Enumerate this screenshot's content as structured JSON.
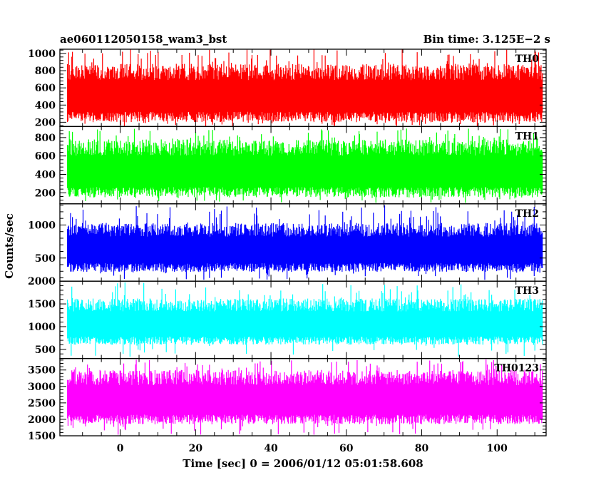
{
  "header": {
    "left": "ae060112050158_wam3_bst",
    "right": "Bin time: 3.125E−2 s"
  },
  "chart_data": {
    "type": "line",
    "xlabel": "Time [sec] 0 = 2006/01/12 05:01:58.608",
    "ylabel": "Counts/sec",
    "xlim": [
      -16,
      113
    ],
    "xrange_data": [
      -14,
      112
    ],
    "bin_time_s": 0.03125,
    "x_ticks": [
      0,
      20,
      40,
      60,
      80,
      100
    ],
    "x_tick_labels": [
      "0",
      "20",
      "40",
      "60",
      "80",
      "100"
    ],
    "grid": false,
    "panels": [
      {
        "name": "TH0",
        "color": "#ff0000",
        "ylim": [
          150,
          1050
        ],
        "yticks": [
          200,
          400,
          600,
          800,
          1000
        ],
        "ytick_labels": [
          "200",
          "400",
          "600",
          "800",
          "1000"
        ],
        "baseline": 555,
        "band_low": 200,
        "band_high": 880,
        "spike_max": 1060,
        "dip_min": 150
      },
      {
        "name": "TH1",
        "color": "#00ff00",
        "ylim": [
          80,
          920
        ],
        "yticks": [
          200,
          400,
          600,
          800
        ],
        "ytick_labels": [
          "200",
          "400",
          "600",
          "800"
        ],
        "baseline": 480,
        "band_low": 150,
        "band_high": 780,
        "spike_max": 900,
        "dip_min": 90
      },
      {
        "name": "TH2",
        "color": "#0000ff",
        "ylim": [
          150,
          1320
        ],
        "yticks": [
          500,
          1000
        ],
        "ytick_labels": [
          "500",
          "1000"
        ],
        "baseline": 640,
        "band_low": 290,
        "band_high": 1030,
        "spike_max": 1300,
        "dip_min": 160
      },
      {
        "name": "TH3",
        "color": "#00ffff",
        "ylim": [
          300,
          2000
        ],
        "yticks": [
          500,
          1000,
          1500,
          2000
        ],
        "ytick_labels": [
          "500",
          "1000",
          "1500",
          "2000"
        ],
        "baseline": 1100,
        "band_low": 600,
        "band_high": 1620,
        "spike_max": 1980,
        "dip_min": 330
      },
      {
        "name": "TH0123",
        "color": "#ff00ff",
        "ylim": [
          1500,
          3850
        ],
        "yticks": [
          1500,
          2000,
          2500,
          3000,
          3500
        ],
        "ytick_labels": [
          "1500",
          "2000",
          "2500",
          "3000",
          "3500"
        ],
        "baseline": 2680,
        "band_low": 1850,
        "band_high": 3500,
        "spike_max": 3820,
        "dip_min": 1520
      }
    ]
  }
}
